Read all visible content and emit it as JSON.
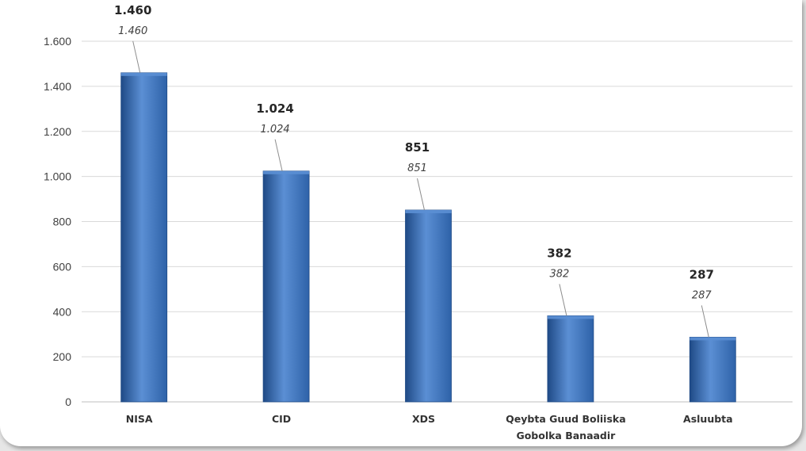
{
  "chart_data": {
    "type": "bar",
    "categories": [
      "NISA",
      "CID",
      "XDS",
      "Qeybta Guud Boliiska Gobolka Banaadir",
      "Asluubta"
    ],
    "category_lines": [
      [
        "NISA"
      ],
      [
        "CID"
      ],
      [
        "XDS"
      ],
      [
        "Qeybta Guud Boliiska",
        "Gobolka Banaadir"
      ],
      [
        "Asluubta"
      ]
    ],
    "values": [
      1460,
      1024,
      851,
      382,
      287
    ],
    "value_labels": [
      "1.460",
      "1.024",
      "851",
      "382",
      "287"
    ],
    "y_ticks": [
      0,
      200,
      400,
      600,
      800,
      1000,
      1200,
      1400,
      1600
    ],
    "y_tick_labels": [
      "0",
      "200",
      "400",
      "600",
      "800",
      "1.000",
      "1.200",
      "1.400",
      "1.600"
    ],
    "ylim": [
      0,
      1600
    ],
    "grid": true,
    "legend": "none",
    "bar_color": "#2e62a8",
    "bar_color_light": "#5b8fd4",
    "bar_color_dark": "#1f4a86"
  }
}
